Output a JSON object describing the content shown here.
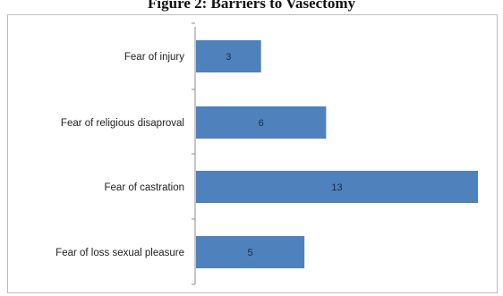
{
  "title": "Figure 2: Barriers to Vasectomy",
  "colors": {
    "bar": "#4f81bd",
    "axis": "#8c8c8c",
    "frame": "#bdbdbd"
  },
  "chart_data": {
    "type": "bar",
    "orientation": "horizontal",
    "title": "Figure 2: Barriers to Vasectomy",
    "categories": [
      "Fear of injury",
      "Fear of religious disaproval",
      "Fear of castration",
      "Fear of loss sexual pleasure"
    ],
    "values": [
      3,
      6,
      13,
      5
    ],
    "data_labels": [
      "3",
      "6",
      "13",
      "5"
    ],
    "xlim": [
      0,
      13
    ],
    "xlabel": "",
    "ylabel": "",
    "grid": false,
    "legend": "none"
  }
}
